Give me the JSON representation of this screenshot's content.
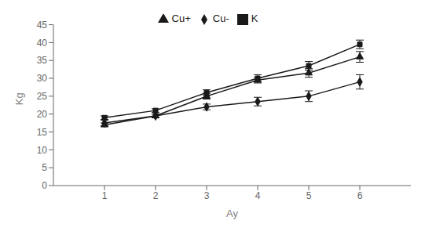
{
  "chart_data": {
    "type": "line",
    "xlabel": "Ay",
    "ylabel": "Kg",
    "x": [
      1,
      2,
      3,
      4,
      5,
      6
    ],
    "xlim": [
      0,
      7
    ],
    "xticks": [
      1,
      2,
      3,
      4,
      5,
      6
    ],
    "ylim": [
      0,
      45
    ],
    "yticks": [
      0,
      5,
      10,
      15,
      20,
      25,
      30,
      35,
      40,
      45
    ],
    "grid": false,
    "legend": "top",
    "series": [
      {
        "name": "Cu-",
        "color": "#1a1a1a",
        "marker": "diamond",
        "values": [
          17.5,
          19.5,
          22.0,
          23.5,
          25.0,
          29.0
        ],
        "errors": [
          0.8,
          0.5,
          0.8,
          1.2,
          1.5,
          2.0
        ]
      },
      {
        "name": "K",
        "color": "#1a1a1a",
        "marker": "square",
        "values": [
          19.0,
          21.0,
          26.0,
          30.0,
          33.5,
          39.5
        ],
        "errors": [
          0.5,
          0.5,
          0.8,
          1.0,
          1.2,
          1.2
        ]
      },
      {
        "name": "Cu+",
        "color": "#1a1a1a",
        "marker": "triangle",
        "values": [
          17.0,
          19.5,
          25.0,
          29.5,
          31.5,
          36.0
        ],
        "errors": [
          0.5,
          0.5,
          0.8,
          0.8,
          1.2,
          1.5
        ]
      }
    ]
  }
}
